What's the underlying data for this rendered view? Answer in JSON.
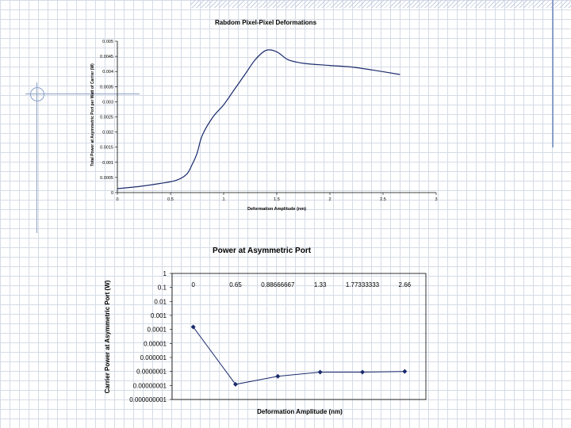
{
  "chart_data": [
    {
      "type": "line",
      "title": "Rabdom Pixel-Pixel Deformations",
      "xlabel": "Deformation Amplitude (nm)",
      "ylabel": "Total Power at Asymmetric Port per Watt of Carrier (W)",
      "x_ticks": [
        "0",
        "0.5",
        "1",
        "1.5",
        "2",
        "2.5",
        "3"
      ],
      "y_ticks": [
        "0",
        "0.0005",
        "0.001",
        "0.0015",
        "0.002",
        "0.0025",
        "0.003",
        "0.0035",
        "0.004",
        "0.0045",
        "0.005"
      ],
      "xlim": [
        0,
        3
      ],
      "ylim": [
        0,
        0.005
      ],
      "grid": false,
      "series": [
        {
          "color": "#1a2a6c",
          "x": [
            0,
            0.2,
            0.4,
            0.55,
            0.65,
            0.7,
            0.75,
            0.8,
            0.9,
            1.0,
            1.1,
            1.2,
            1.3,
            1.4,
            1.5,
            1.6,
            1.7,
            1.8,
            2.0,
            2.2,
            2.4,
            2.66
          ],
          "y": [
            0.00013,
            0.0002,
            0.0003,
            0.0004,
            0.0006,
            0.0009,
            0.0013,
            0.0019,
            0.0025,
            0.0029,
            0.0034,
            0.0039,
            0.0044,
            0.0047,
            0.00465,
            0.0044,
            0.0043,
            0.00425,
            0.0042,
            0.00415,
            0.00405,
            0.0039
          ]
        }
      ]
    },
    {
      "type": "line",
      "title": "Power at Asymmetric Port",
      "xlabel": "Deformation Amplitude (nm)",
      "ylabel": "Carrier Power at Asymmetric Port (W)",
      "scale": "log",
      "x_categories": [
        "0",
        "0.65",
        "0.88666667",
        "1.33",
        "1.77333333",
        "2.66"
      ],
      "y_ticks": [
        "1",
        "0.1",
        "0.01",
        "0.001",
        "0.0001",
        "0.00001",
        "0.000001",
        "0.0000001",
        "0.00000001",
        "0.000000001"
      ],
      "ylim": [
        1e-09,
        1
      ],
      "grid": false,
      "series": [
        {
          "color": "#1a2a6c",
          "values": [
            0.00015,
            1.2e-08,
            4.5e-08,
            9e-08,
            9e-08,
            1e-07
          ]
        }
      ]
    }
  ]
}
